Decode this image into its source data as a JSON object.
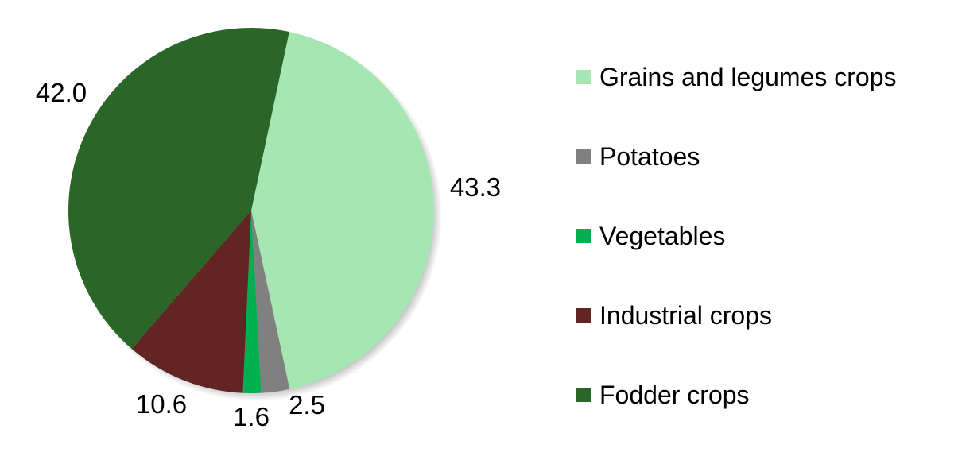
{
  "chart_data": {
    "type": "pie",
    "start_angle_deg": 12,
    "direction": "clockwise",
    "legend_position": "right",
    "data_labels": "outside",
    "slices": [
      {
        "name": "Grains and legumes crops",
        "value": 43.3,
        "label": "43.3",
        "color": "#a6e6b2"
      },
      {
        "name": "Potatoes",
        "value": 2.5,
        "label": "2.5",
        "color": "#808080"
      },
      {
        "name": "Vegetables",
        "value": 1.6,
        "label": "1.6",
        "color": "#00b050"
      },
      {
        "name": "Industrial crops",
        "value": 10.6,
        "label": "10.6",
        "color": "#632523"
      },
      {
        "name": "Fodder crops",
        "value": 42.0,
        "label": "42.0",
        "color": "#2a6628"
      }
    ]
  }
}
